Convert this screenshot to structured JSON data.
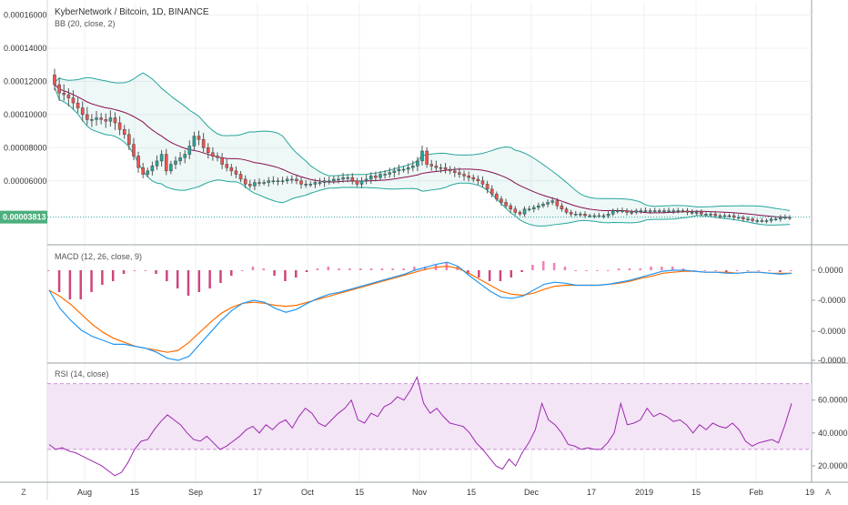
{
  "chart_data": [
    {
      "panel": "price",
      "type": "candlestick",
      "title": "KyberNetwork / Bitcoin, 1D, BINANCE",
      "indicator_label": "BB (20, close, 2)",
      "y_ticks": [
        "0.00016000",
        "0.00014000",
        "0.00012000",
        "0.00010000",
        "0.00008000",
        "0.00006000"
      ],
      "ylim": [
        2.2e-05,
        0.000168
      ],
      "last_price_label": "0.00003813",
      "last_price": 3.813e-05,
      "close_series": [
        0.000118,
        0.000113,
        0.000112,
        0.00011,
        0.000107,
        0.000104,
        0.0001,
        9.7e-05,
        9.7e-05,
        9.8e-05,
        9.7e-05,
        9.6e-05,
        9.8e-05,
        9.5e-05,
        9.1e-05,
        8.8e-05,
        8.2e-05,
        7.5e-05,
        6.8e-05,
        6.4e-05,
        6.6e-05,
        6.9e-05,
        7.2e-05,
        7.6e-05,
        6.6e-05,
        7e-05,
        7.2e-05,
        7.4e-05,
        7.6e-05,
        8.1e-05,
        8.7e-05,
        8.5e-05,
        8e-05,
        7.7e-05,
        7.5e-05,
        7.4e-05,
        7e-05,
        6.8e-05,
        6.6e-05,
        6.4e-05,
        6.1e-05,
        5.8e-05,
        5.7e-05,
        5.9e-05,
        5.9e-05,
        5.9e-05,
        6e-05,
        6e-05,
        6e-05,
        6e-05,
        6.1e-05,
        6.1e-05,
        6e-05,
        5.8e-05,
        5.8e-05,
        5.8e-05,
        5.9e-05,
        5.9e-05,
        6e-05,
        6e-05,
        6.1e-05,
        6.1e-05,
        6.2e-05,
        6.2e-05,
        6e-05,
        5.8e-05,
        6e-05,
        6.1e-05,
        6.3e-05,
        6.2e-05,
        6.4e-05,
        6.4e-05,
        6.5e-05,
        6.6e-05,
        6.7e-05,
        6.7e-05,
        6.8e-05,
        6.9e-05,
        7.2e-05,
        7.8e-05,
        7e-05,
        6.9e-05,
        6.8e-05,
        6.8e-05,
        6.7e-05,
        6.6e-05,
        6.5e-05,
        6.4e-05,
        6.3e-05,
        6.2e-05,
        6.1e-05,
        6e-05,
        5.8e-05,
        5.5e-05,
        5.2e-05,
        4.9e-05,
        4.7e-05,
        4.5e-05,
        4.3e-05,
        4.1e-05,
        4e-05,
        4.3e-05,
        4.3e-05,
        4.4e-05,
        4.5e-05,
        4.6e-05,
        4.7e-05,
        4.8e-05,
        4.5e-05,
        4.3e-05,
        4.1e-05,
        4e-05,
        4e-05,
        4e-05,
        3.9e-05,
        3.9e-05,
        3.9e-05,
        3.9e-05,
        3.9e-05,
        4e-05,
        4.2e-05,
        4.2e-05,
        4.2e-05,
        4.1e-05,
        4.1e-05,
        4.2e-05,
        4.2e-05,
        4.2e-05,
        4.2e-05,
        4.2e-05,
        4.2e-05,
        4.2e-05,
        4.2e-05,
        4.2e-05,
        4.2e-05,
        4.2e-05,
        4.1e-05,
        4.1e-05,
        4.1e-05,
        4e-05,
        4e-05,
        4e-05,
        3.9e-05,
        3.9e-05,
        3.9e-05,
        3.9e-05,
        3.8e-05,
        3.8e-05,
        3.7e-05,
        3.7e-05,
        3.6e-05,
        3.6e-05,
        3.6e-05,
        3.6e-05,
        3.7e-05,
        3.7e-05,
        3.8e-05,
        3.8e-05,
        3.8e-05
      ]
    },
    {
      "panel": "macd",
      "type": "line",
      "indicator_label": "MACD (12, 26, close, 9)",
      "y_ticks": [
        "0.0000",
        "-0.0000",
        "-0.0000",
        "-0.0000"
      ],
      "series": [
        {
          "name": "MACD",
          "color": "#2196f3",
          "values": [
            -0.2,
            -0.38,
            -0.5,
            -0.6,
            -0.66,
            -0.7,
            -0.74,
            -0.74,
            -0.76,
            -0.78,
            -0.82,
            -0.88,
            -0.9,
            -0.86,
            -0.74,
            -0.62,
            -0.5,
            -0.4,
            -0.33,
            -0.3,
            -0.32,
            -0.38,
            -0.42,
            -0.39,
            -0.33,
            -0.28,
            -0.24,
            -0.22,
            -0.19,
            -0.16,
            -0.13,
            -0.1,
            -0.07,
            -0.04,
            0.0,
            0.03,
            0.06,
            0.08,
            0.04,
            -0.05,
            -0.13,
            -0.21,
            -0.27,
            -0.28,
            -0.26,
            -0.2,
            -0.14,
            -0.12,
            -0.13,
            -0.15,
            -0.15,
            -0.15,
            -0.14,
            -0.12,
            -0.1,
            -0.07,
            -0.04,
            -0.01,
            0.0,
            0.0,
            -0.01,
            -0.02,
            -0.02,
            -0.03,
            -0.03,
            -0.02,
            -0.02,
            -0.03,
            -0.04,
            -0.03
          ]
        },
        {
          "name": "Signal",
          "color": "#ff6d00",
          "values": [
            -0.2,
            -0.26,
            -0.34,
            -0.44,
            -0.54,
            -0.62,
            -0.68,
            -0.72,
            -0.76,
            -0.78,
            -0.8,
            -0.82,
            -0.8,
            -0.72,
            -0.62,
            -0.52,
            -0.43,
            -0.37,
            -0.33,
            -0.32,
            -0.33,
            -0.35,
            -0.36,
            -0.35,
            -0.32,
            -0.29,
            -0.26,
            -0.23,
            -0.2,
            -0.17,
            -0.14,
            -0.11,
            -0.08,
            -0.05,
            -0.02,
            0.01,
            0.03,
            0.04,
            0.02,
            -0.03,
            -0.09,
            -0.15,
            -0.21,
            -0.24,
            -0.25,
            -0.23,
            -0.19,
            -0.16,
            -0.15,
            -0.15,
            -0.15,
            -0.15,
            -0.14,
            -0.13,
            -0.11,
            -0.08,
            -0.06,
            -0.03,
            -0.02,
            -0.01,
            -0.01,
            -0.02,
            -0.02,
            -0.02,
            -0.03,
            -0.02,
            -0.02,
            -0.03,
            -0.03,
            -0.03
          ]
        }
      ]
    },
    {
      "panel": "rsi",
      "type": "line",
      "indicator_label": "RSI (14, close)",
      "y_ticks": [
        "60.0000",
        "40.0000",
        "20.0000"
      ],
      "ylim": [
        10,
        82
      ],
      "band": [
        30,
        70
      ],
      "series": [
        {
          "name": "RSI",
          "color": "#9c27b0",
          "values": [
            33,
            30,
            31,
            29,
            28,
            26,
            24,
            22,
            20,
            17,
            14,
            16,
            22,
            30,
            35,
            36,
            42,
            47,
            51,
            48,
            45,
            40,
            36,
            35,
            38,
            34,
            30,
            32,
            35,
            38,
            42,
            44,
            40,
            45,
            42,
            46,
            48,
            43,
            50,
            55,
            52,
            46,
            44,
            48,
            52,
            55,
            60,
            48,
            46,
            52,
            50,
            56,
            58,
            62,
            60,
            66,
            74,
            58,
            52,
            55,
            50,
            46,
            45,
            44,
            40,
            34,
            30,
            25,
            20,
            18,
            24,
            20,
            28,
            34,
            42,
            58,
            48,
            45,
            40,
            33,
            32,
            30,
            31,
            30,
            30,
            34,
            40,
            58,
            45,
            46,
            48,
            55,
            50,
            52,
            50,
            47,
            48,
            45,
            40,
            45,
            42,
            46,
            44,
            43,
            46,
            42,
            35,
            32,
            34,
            35,
            36,
            34,
            45,
            58
          ]
        }
      ]
    }
  ],
  "x_axis": {
    "labels": [
      "Aug",
      "15",
      "Sep",
      "17",
      "Oct",
      "15",
      "Nov",
      "15",
      "Dec",
      "17",
      "2019",
      "15",
      "Feb",
      "19"
    ]
  },
  "corner_icons": {
    "left": "Z",
    "right": "A"
  },
  "colors": {
    "up": "#26a69a",
    "down": "#ef5350",
    "bb_band": "#26a69a",
    "bb_basis": "#880e4f",
    "rsi_fill": "#f3e5f5"
  }
}
